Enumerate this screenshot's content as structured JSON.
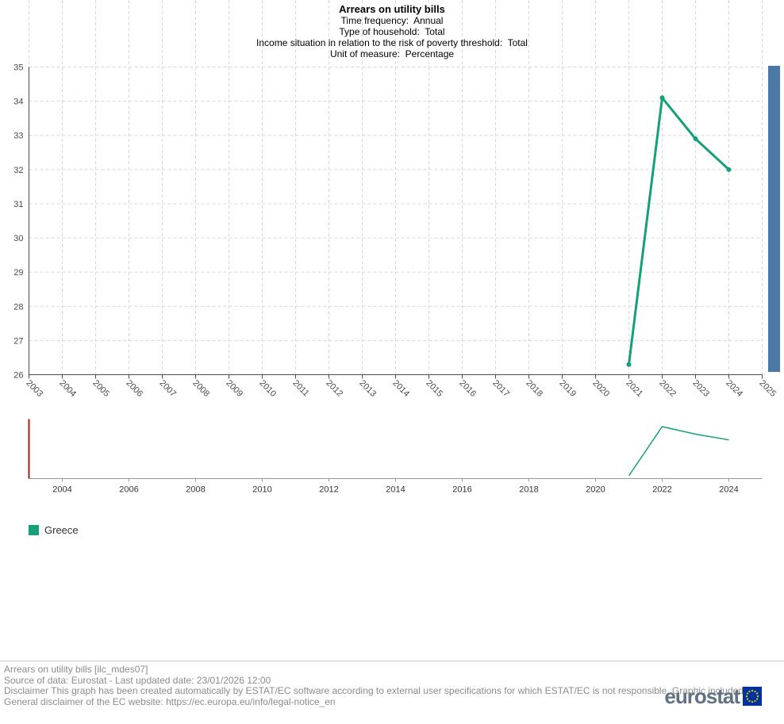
{
  "header": {
    "title": "Arrears on utility bills",
    "subtitle_lines": [
      "Time frequency:  Annual",
      "Type of household:  Total",
      "Income situation in relation to the risk of poverty threshold:  Total",
      "Unit of measure:  Percentage"
    ]
  },
  "chart_data": {
    "type": "line",
    "title": "Arrears on utility bills",
    "xlabel": "",
    "ylabel": "",
    "xlim": [
      2003,
      2025
    ],
    "ylim": [
      26,
      35
    ],
    "x_ticks": [
      2003,
      2004,
      2005,
      2006,
      2007,
      2008,
      2009,
      2010,
      2011,
      2012,
      2013,
      2014,
      2015,
      2016,
      2017,
      2018,
      2019,
      2020,
      2021,
      2022,
      2023,
      2024,
      2025
    ],
    "y_ticks": [
      26,
      27,
      28,
      29,
      30,
      31,
      32,
      33,
      34,
      35
    ],
    "grid": true,
    "legend_position": "bottom-left",
    "series": [
      {
        "name": "Greece",
        "color": "#14a078",
        "x": [
          2021,
          2022,
          2023,
          2024
        ],
        "values": [
          26.3,
          34.1,
          32.9,
          32.0
        ]
      }
    ],
    "navigator": {
      "tick_labels": [
        2004,
        2006,
        2008,
        2010,
        2012,
        2014,
        2016,
        2018,
        2020,
        2022,
        2024
      ]
    }
  },
  "legend": {
    "items": [
      {
        "label": "Greece",
        "color": "#14a078"
      }
    ]
  },
  "footer": {
    "lines": [
      "Arrears on utility bills [ilc_mdes07]",
      "Source of data: Eurostat - Last updated date: 23/01/2026 12:00",
      "Disclaimer This graph has been created automatically by ESTAT/EC software according to external user specifications for which ESTAT/EC is not responsible. Graphic included.",
      "General disclaimer of the EC website: https://ec.europa.eu/info/legal-notice_en"
    ]
  },
  "logo": {
    "text": "eurostat"
  },
  "colors": {
    "accent_green": "#14a078",
    "scrollbar_blue": "#4a79a8",
    "navigator_red": "#a52019",
    "grid_gray": "#d8d8d8",
    "axis_gray": "#4d4d4d",
    "eu_blue": "#003399",
    "star_yellow": "#ffcc00"
  }
}
